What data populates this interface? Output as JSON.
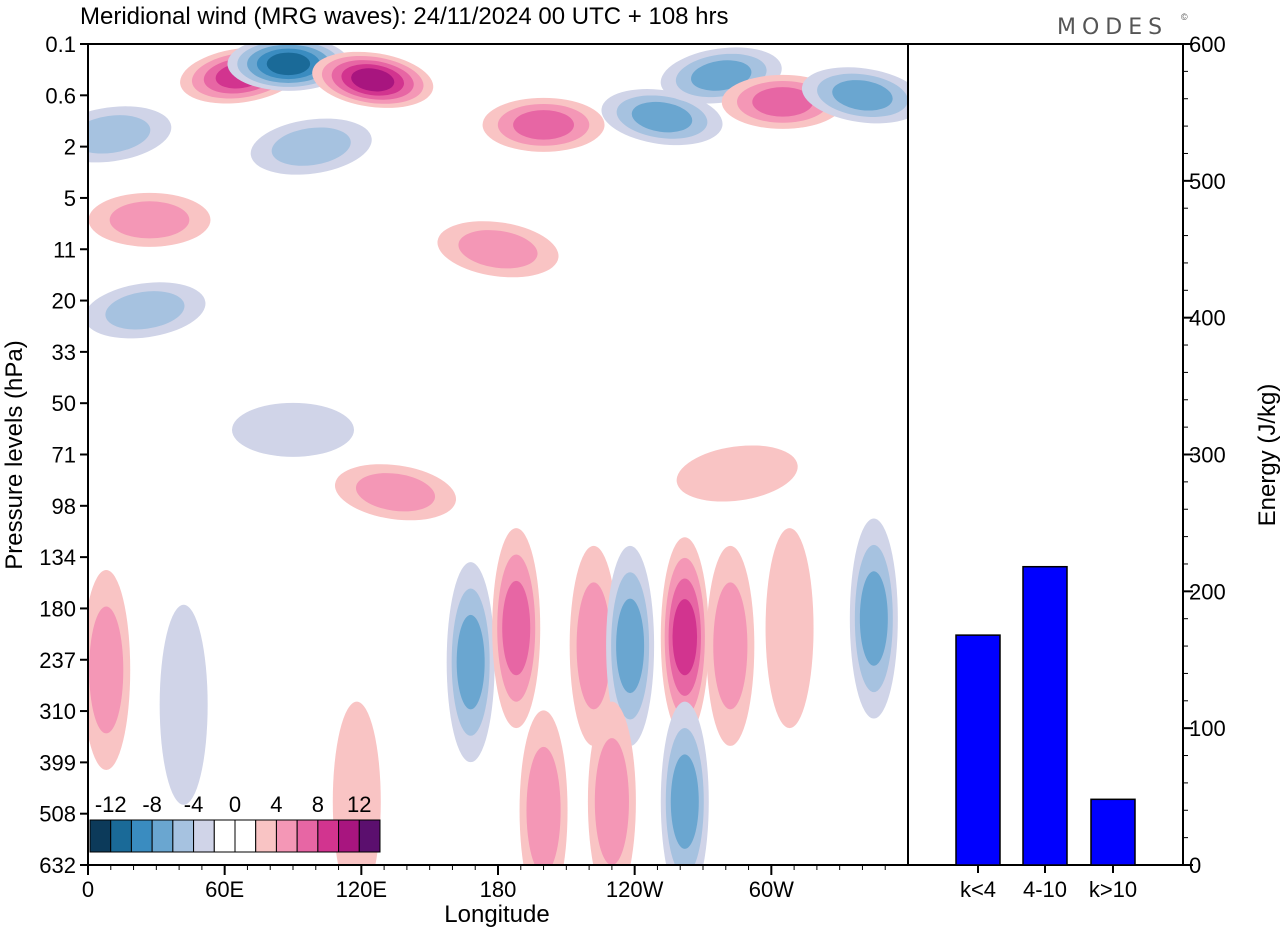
{
  "title": "Meridional wind (MRG waves):  24/11/2024  00 UTC  + 108 hrs",
  "brand": "MODES",
  "brand_mark": "©",
  "chart_data": [
    {
      "type": "heatmap",
      "title": "Meridional wind (MRG waves):  24/11/2024  00 UTC  + 108 hrs",
      "xlabel": "Longitude",
      "ylabel": "Pressure levels (hPa)",
      "x_ticks": [
        "0",
        "60E",
        "120E",
        "180",
        "120W",
        "60W"
      ],
      "y_ticks": [
        "0.1",
        "0.6",
        "2",
        "5",
        "11",
        "20",
        "33",
        "50",
        "71",
        "98",
        "134",
        "180",
        "237",
        "310",
        "399",
        "508",
        "632"
      ],
      "colorbar": {
        "labels": [
          "-12",
          "-8",
          "-4",
          "0",
          "4",
          "8",
          "12"
        ],
        "colors": [
          "#0c3a5a",
          "#1a6a98",
          "#3a8cc0",
          "#6aa6d0",
          "#a6c2e0",
          "#d0d4e8",
          "#ffffff",
          "#ffffff",
          "#f9c4c4",
          "#f497b6",
          "#e766a4",
          "#d2348f",
          "#a8157f",
          "#5b0f6e"
        ]
      },
      "field_features": [
        {
          "lon": 67,
          "lev": 0.3,
          "v": 9
        },
        {
          "lon": 88,
          "lev": 0.2,
          "v": -12
        },
        {
          "lon": 125,
          "lev": 0.35,
          "v": 12
        },
        {
          "lon": 98,
          "lev": 2.0,
          "v": -6
        },
        {
          "lon": 200,
          "lev": 1.2,
          "v": 8
        },
        {
          "lon": 252,
          "lev": 1.0,
          "v": -8
        },
        {
          "lon": 278,
          "lev": 0.3,
          "v": -7
        },
        {
          "lon": 305,
          "lev": 0.7,
          "v": 7
        },
        {
          "lon": 340,
          "lev": 0.6,
          "v": -7
        },
        {
          "lon": 10,
          "lev": 1.5,
          "v": -5
        },
        {
          "lon": 27,
          "lev": 7,
          "v": 5
        },
        {
          "lon": 180,
          "lev": 11,
          "v": 5
        },
        {
          "lon": 25,
          "lev": 22,
          "v": -5
        },
        {
          "lon": 90,
          "lev": 60,
          "v": -3
        },
        {
          "lon": 135,
          "lev": 90,
          "v": 5
        },
        {
          "lon": 285,
          "lev": 80,
          "v": 3
        },
        {
          "lon": 8,
          "lev": 250,
          "v": 6
        },
        {
          "lon": 42,
          "lev": 300,
          "v": -4
        },
        {
          "lon": 168,
          "lev": 240,
          "v": -7
        },
        {
          "lon": 188,
          "lev": 200,
          "v": 7
        },
        {
          "lon": 222,
          "lev": 220,
          "v": 6
        },
        {
          "lon": 238,
          "lev": 220,
          "v": -7
        },
        {
          "lon": 262,
          "lev": 210,
          "v": 9
        },
        {
          "lon": 262,
          "lev": 480,
          "v": -7
        },
        {
          "lon": 282,
          "lev": 220,
          "v": 6
        },
        {
          "lon": 308,
          "lev": 200,
          "v": 4
        },
        {
          "lon": 345,
          "lev": 190,
          "v": -8
        },
        {
          "lon": 230,
          "lev": 480,
          "v": 6
        },
        {
          "lon": 200,
          "lev": 500,
          "v": 6
        },
        {
          "lon": 118,
          "lev": 480,
          "v": 4
        }
      ]
    },
    {
      "type": "bar",
      "ylabel": "Energy (J/kg)",
      "categories": [
        "k<4",
        "4-10",
        "k>10"
      ],
      "values": [
        168,
        218,
        48
      ],
      "ylim": [
        0,
        600
      ],
      "y_ticks": [
        "0",
        "100",
        "200",
        "300",
        "400",
        "500",
        "600"
      ],
      "bar_color": "#0000ff"
    }
  ]
}
